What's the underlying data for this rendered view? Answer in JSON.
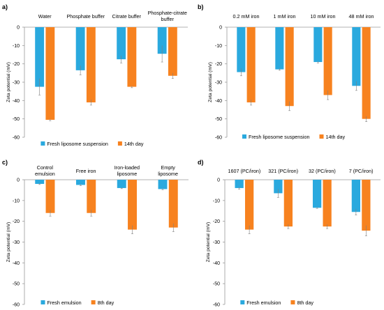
{
  "colors": {
    "fresh": "#2aa9de",
    "aged": "#f7821f",
    "axis": "#9a9a9a",
    "error": "#7f7f7f"
  },
  "chart_data": [
    {
      "panel": "a)",
      "type": "bar",
      "ylabel": "Zeta potential (mV)",
      "ylim": [
        -60,
        0
      ],
      "yticks": [
        0,
        -10,
        -20,
        -30,
        -40,
        -50,
        -60
      ],
      "categories": [
        [
          "Water"
        ],
        [
          "Phosphate buffer"
        ],
        [
          "Citrate buffer"
        ],
        [
          "Phosphate-citrate",
          "buffer"
        ]
      ],
      "series": [
        {
          "name": "Fresh liposome suspension",
          "values": [
            -32.5,
            -23.5,
            -17.5,
            -14.5
          ],
          "errors": [
            4.5,
            2.5,
            2.0,
            4.5
          ]
        },
        {
          "name": "14th day",
          "values": [
            -50.5,
            -41.0,
            -32.5,
            -26.5
          ],
          "errors": [
            0.5,
            1.5,
            0.5,
            1.5
          ]
        }
      ]
    },
    {
      "panel": "b)",
      "type": "bar",
      "ylabel": "Zeta potential (mV)",
      "ylim": [
        -60,
        0
      ],
      "yticks": [
        0,
        -10,
        -20,
        -30,
        -40,
        -50,
        -60
      ],
      "categories": [
        [
          "0.2 mM iron"
        ],
        [
          "1 mM iron"
        ],
        [
          "10 mM iron"
        ],
        [
          "48 mM iron"
        ]
      ],
      "series": [
        {
          "name": "Fresh liposome suspension",
          "values": [
            -24.5,
            -23.0,
            -19.0,
            -32.0
          ],
          "errors": [
            2.0,
            0.5,
            0.5,
            2.5
          ]
        },
        {
          "name": "14th day",
          "values": [
            -41.0,
            -43.0,
            -37.0,
            -50.0
          ],
          "errors": [
            1.5,
            2.5,
            2.5,
            1.5
          ]
        }
      ]
    },
    {
      "panel": "c)",
      "type": "bar",
      "ylabel": "Zeta potential (mV)",
      "ylim": [
        -60,
        0
      ],
      "yticks": [
        0,
        -10,
        -20,
        -30,
        -40,
        -50,
        -60
      ],
      "categories": [
        [
          "Control",
          "emulsion"
        ],
        [
          "Free iron"
        ],
        [
          "Iron-loaded",
          "liposome"
        ],
        [
          "Empty",
          "liposome"
        ]
      ],
      "series": [
        {
          "name": "Fresh emulsion",
          "values": [
            -2.0,
            -2.5,
            -4.0,
            -4.5
          ],
          "errors": [
            0.3,
            0.3,
            0.3,
            0.3
          ]
        },
        {
          "name": "8th day",
          "values": [
            -16.0,
            -16.0,
            -24.0,
            -23.0
          ],
          "errors": [
            1.5,
            1.5,
            2.0,
            2.0
          ]
        }
      ]
    },
    {
      "panel": "d)",
      "type": "bar",
      "ylabel": "Zeta potential (mV)",
      "ylim": [
        -60,
        0
      ],
      "yticks": [
        0,
        -10,
        -20,
        -30,
        -40,
        -50,
        -60
      ],
      "categories": [
        [
          "1607 (PC/iron)"
        ],
        [
          "321 (PC/iron)"
        ],
        [
          "32 (PC/iron)"
        ],
        [
          "7 (PC/iron)"
        ]
      ],
      "series": [
        {
          "name": "Fresh emulsion",
          "values": [
            -4.0,
            -6.5,
            -13.5,
            -15.5
          ],
          "errors": [
            0.5,
            2.0,
            0.3,
            1.5
          ]
        },
        {
          "name": "8th day",
          "values": [
            -24.0,
            -22.5,
            -22.5,
            -24.5
          ],
          "errors": [
            2.0,
            1.0,
            1.0,
            2.5
          ]
        }
      ]
    }
  ]
}
